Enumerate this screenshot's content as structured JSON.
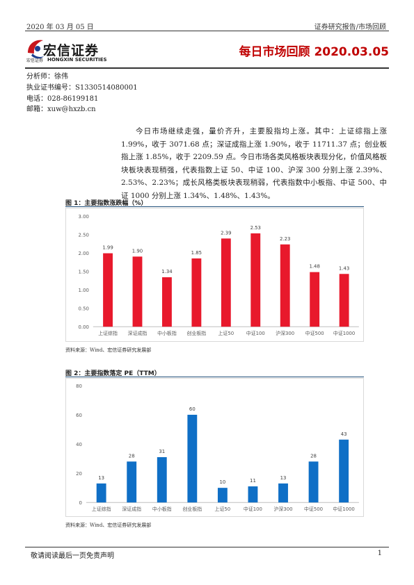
{
  "header": {
    "date": "2020 年 03 月 05 日",
    "category": "证券研究报告/市场回顾",
    "logo_cn": "宏信证券",
    "logo_small": "宏信证券",
    "logo_en": "HONGXIN SECURITIES",
    "title": "每日市场回顾 2020.03.05"
  },
  "analyst": {
    "name": "分析师：徐伟",
    "license": "执业证书编号：S1330514080001",
    "phone": "电话：028-86199181",
    "email": "邮箱：xuw@hxzb.cn"
  },
  "summary": "今日市场继续走强，量价齐升，主要股指均上涨。其中：上证综指上涨 1.99%，收于 3071.68 点；深证成指上涨 1.90%，收于 11711.37 点；创业板指上涨 1.85%，收于 2209.59 点。今日市场各类风格板块表现分化，价值风格板块板块表现稍强，代表指数上证 50、中证 100、沪深 300 分别上涨 2.39%、2.53%、2.23%；成长风格类板块表现稍弱，代表指数中小板指、中证 500、中证 1000 分别上涨 1.34%、1.48%、1.43%。",
  "figure1": {
    "title": "图 1：主要指数涨跌幅（%）",
    "source": "资料来源：Wind、宏信证券研究发展部"
  },
  "figure2": {
    "title": "图 2：主要指数落定 PE（TTM）",
    "source": "资料来源：Wind、宏信证券研究发展部"
  },
  "chart_data": [
    {
      "type": "bar",
      "categories": [
        "上证综指",
        "深证成指",
        "中小板指",
        "创业板指",
        "上证50",
        "中证100",
        "沪深300",
        "中证500",
        "中证1000"
      ],
      "values": [
        1.99,
        1.9,
        1.34,
        1.85,
        2.39,
        2.53,
        2.23,
        1.48,
        1.43
      ],
      "value_labels": [
        "1.99",
        "1.90",
        "1.34",
        "1.85",
        "2.39",
        "2.53",
        "2.23",
        "1.48",
        "1.43"
      ],
      "ylim": [
        0,
        3
      ],
      "yticks": [
        "0.00",
        "0.50",
        "1.00",
        "1.50",
        "2.00",
        "2.50",
        "3.00"
      ],
      "color": "#e8192c",
      "grid": false
    },
    {
      "type": "bar",
      "categories": [
        "上证综指",
        "深证成指",
        "中小板指",
        "创业板指",
        "上证50",
        "中证100",
        "沪深300",
        "中证500",
        "中证1000"
      ],
      "values": [
        13,
        28,
        31,
        60,
        10,
        11,
        13,
        28,
        43
      ],
      "value_labels": [
        "13",
        "28",
        "31",
        "60",
        "10",
        "11",
        "13",
        "28",
        "43"
      ],
      "ylim": [
        0,
        80
      ],
      "yticks": [
        "0",
        "20",
        "40",
        "60",
        "80"
      ],
      "color": "#0f6fc6",
      "grid": false
    }
  ],
  "footer": {
    "disclaimer": "敬请阅读最后一页免责声明",
    "page": "1"
  }
}
